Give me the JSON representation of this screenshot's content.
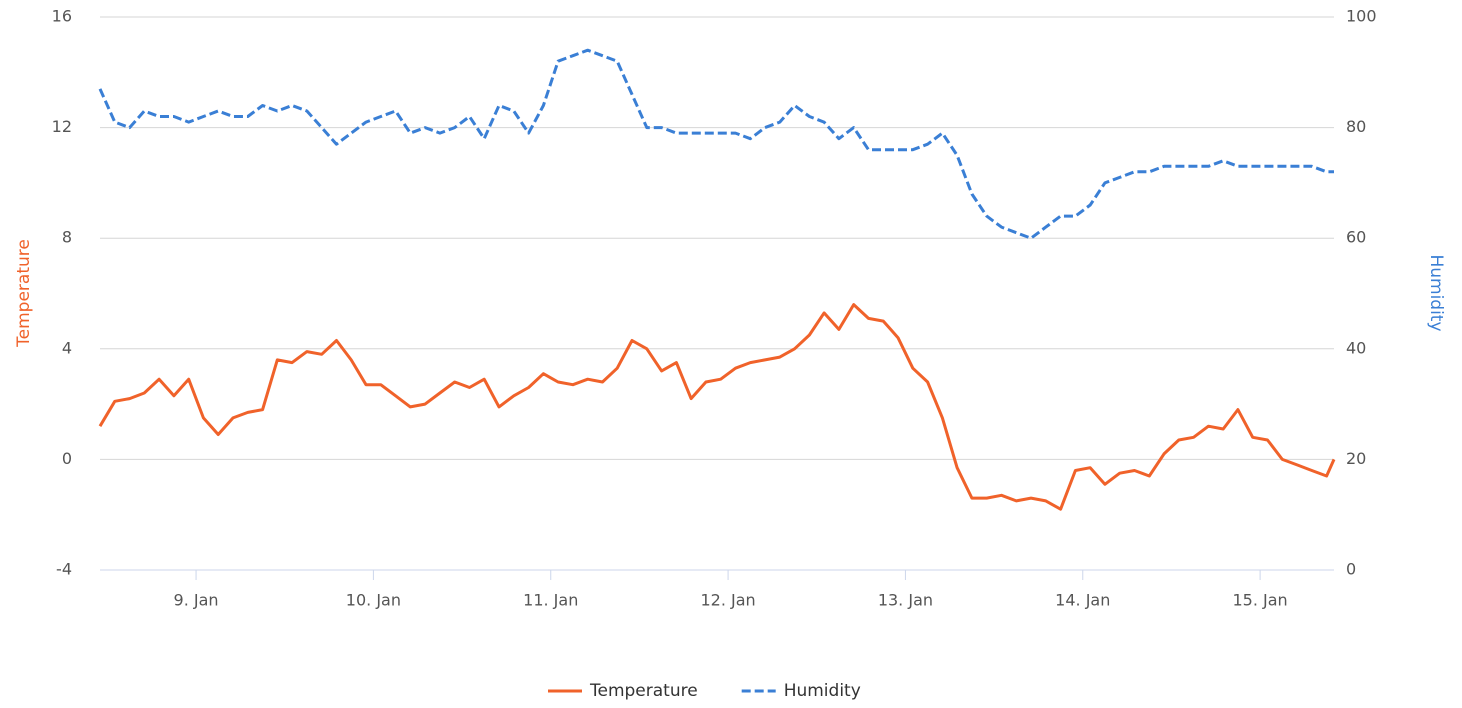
{
  "chart_data": {
    "type": "line",
    "x": [
      11,
      13,
      15,
      17,
      19,
      21,
      23,
      25,
      27,
      29,
      31,
      33,
      35,
      37,
      39,
      41,
      43,
      45,
      47,
      49,
      51,
      53,
      55,
      57,
      59,
      61,
      63,
      65,
      67,
      69,
      71,
      73,
      75,
      77,
      79,
      81,
      83,
      85,
      87,
      89,
      91,
      93,
      95,
      97,
      99,
      101,
      103,
      105,
      107,
      109,
      111,
      113,
      115,
      117,
      119,
      121,
      123,
      125,
      127,
      129,
      131,
      133,
      135,
      137,
      139,
      141,
      143,
      145,
      147,
      149,
      151,
      153,
      155,
      157,
      159,
      161,
      163,
      165,
      167,
      169,
      171,
      173,
      175,
      177,
      178
    ],
    "xlim": [
      11,
      178
    ],
    "xticks": [
      {
        "value": 24,
        "label": "9. Jan"
      },
      {
        "value": 48,
        "label": "10. Jan"
      },
      {
        "value": 72,
        "label": "11. Jan"
      },
      {
        "value": 96,
        "label": "12. Jan"
      },
      {
        "value": 120,
        "label": "13. Jan"
      },
      {
        "value": 144,
        "label": "14. Jan"
      },
      {
        "value": 168,
        "label": "15. Jan"
      }
    ],
    "ylabel": "Temperature",
    "y2label": "Humidity",
    "ylim": [
      -4,
      16
    ],
    "yticks": [
      -4,
      0,
      4,
      8,
      12,
      16
    ],
    "y2lim": [
      0,
      100
    ],
    "y2ticks": [
      0,
      20,
      40,
      60,
      80,
      100
    ],
    "grid": true,
    "legend": "bottom",
    "series": [
      {
        "name": "Temperature",
        "color": "#f0622a",
        "dash": false,
        "values": [
          1.2,
          2.1,
          2.2,
          2.4,
          2.9,
          2.3,
          2.9,
          1.5,
          0.9,
          1.5,
          1.7,
          1.8,
          3.6,
          3.5,
          3.9,
          3.8,
          4.3,
          3.6,
          2.7,
          2.7,
          2.3,
          1.9,
          2.0,
          2.4,
          2.8,
          2.6,
          2.9,
          1.9,
          2.3,
          2.6,
          3.1,
          2.8,
          2.7,
          2.9,
          2.8,
          3.3,
          4.3,
          4.0,
          3.2,
          3.5,
          2.2,
          2.8,
          2.9,
          3.3,
          3.5,
          3.6,
          3.7,
          4.0,
          4.5,
          5.3,
          4.7,
          5.6,
          5.1,
          5.0,
          4.4,
          3.3,
          2.8,
          1.5,
          -0.3,
          -1.4,
          -1.4,
          -1.3,
          -1.5,
          -1.4,
          -1.5,
          -1.8,
          -0.4,
          -0.3,
          -0.9,
          -0.5,
          -0.4,
          -0.6,
          0.2,
          0.7,
          0.8,
          1.2,
          1.1,
          1.8,
          0.8,
          0.7,
          0,
          -0.2,
          -0.4,
          -0.6,
          0
        ]
      },
      {
        "name": "Humidity",
        "color": "#3a7fd5",
        "dash": true,
        "axis": "y2",
        "values": [
          87,
          81,
          80,
          83,
          82,
          82,
          81,
          82,
          83,
          82,
          82,
          84,
          83,
          84,
          83,
          80,
          77,
          79,
          81,
          82,
          83,
          79,
          80,
          79,
          80,
          82,
          78,
          84,
          83,
          79,
          84,
          92,
          93,
          94,
          93,
          92,
          86,
          80,
          80,
          79,
          79,
          79,
          79,
          79,
          78,
          80,
          81,
          84,
          82,
          81,
          78,
          80,
          76,
          76,
          76,
          76,
          77,
          79,
          75,
          68,
          64,
          62,
          61,
          60,
          62,
          64,
          64,
          66,
          70,
          71,
          72,
          72,
          73,
          73,
          73,
          73,
          74,
          73,
          73,
          73,
          73,
          73,
          73,
          72,
          72
        ]
      }
    ]
  }
}
